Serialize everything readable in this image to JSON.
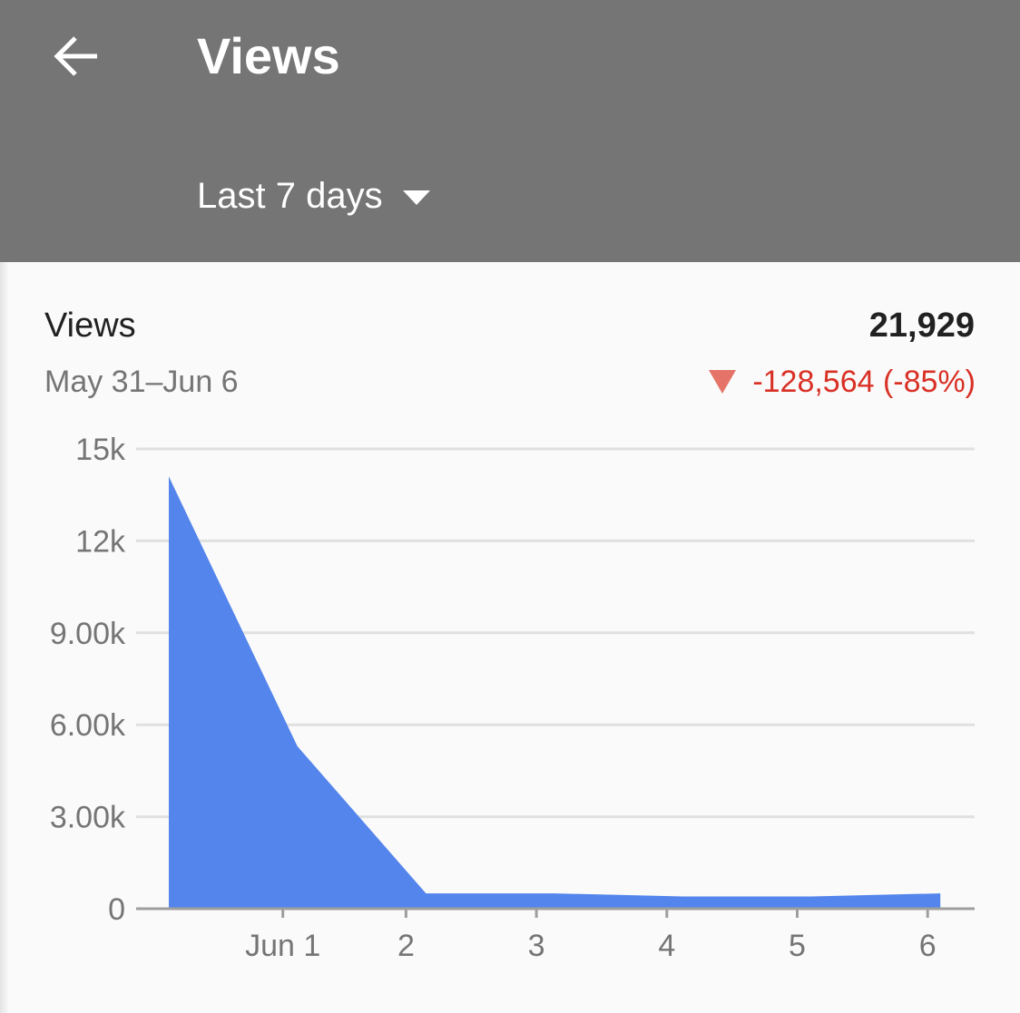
{
  "app_bar": {
    "title": "Views",
    "range": "Last 7 days",
    "back_icon": "arrow-back-icon",
    "dropdown_icon": "caret-down-icon",
    "background": "#757575"
  },
  "card": {
    "title": "Views",
    "date_range": "May 31–Jun 6",
    "total": "21,929",
    "change": "-128,564 (-85%)",
    "change_color": "#d93025",
    "change_icon": "triangle-down-icon",
    "change_icon_color": "#e57368"
  },
  "chart_data": {
    "type": "area",
    "x": [
      "May 31",
      "Jun 1",
      "Jun 2",
      "Jun 3",
      "Jun 4",
      "Jun 5",
      "Jun 6"
    ],
    "values": [
      14100,
      5300,
      500,
      500,
      400,
      400,
      500
    ],
    "x_tick_labels": [
      "Jun 1",
      "2",
      "3",
      "4",
      "5",
      "6"
    ],
    "y_ticks": [
      0,
      3000,
      6000,
      9000,
      12000,
      15000
    ],
    "y_tick_labels": [
      "0",
      "3.00k",
      "6.00k",
      "9.00k",
      "12k",
      "15k"
    ],
    "ylim": [
      0,
      15000
    ],
    "grid": true,
    "fill_color": "#5385ec",
    "grid_color": "#e0e0e0",
    "axis_color": "#9e9e9e"
  }
}
